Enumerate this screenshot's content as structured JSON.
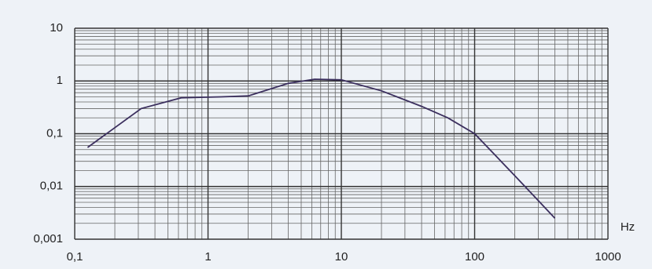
{
  "chart_data": {
    "type": "line",
    "x_label": "Hz",
    "series": [
      {
        "color": "#3b2f5e",
        "x": [
          0.125,
          0.2,
          0.315,
          0.63,
          1.25,
          2,
          4,
          6.3,
          10,
          20,
          40,
          63,
          100,
          200,
          400
        ],
        "values": [
          0.055,
          0.13,
          0.3,
          0.48,
          0.5,
          0.52,
          0.9,
          1.08,
          1.05,
          0.65,
          0.33,
          0.2,
          0.1,
          0.016,
          0.0025
        ]
      }
    ],
    "xlim": [
      0.1,
      1000
    ],
    "ylim": [
      0.001,
      10
    ],
    "xlog": true,
    "ylog": true,
    "grid": true,
    "xticks": [
      {
        "value": 0.1,
        "label": "0,1"
      },
      1,
      10,
      100,
      1000
    ],
    "yticks": [
      {
        "value": 0.001,
        "label": "0,001"
      },
      {
        "value": 0.01,
        "label": "0,01"
      },
      {
        "value": 0.1,
        "label": "0,1"
      },
      1,
      10
    ]
  }
}
